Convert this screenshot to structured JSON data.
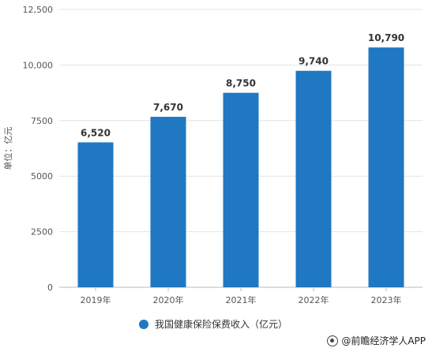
{
  "chart_data": {
    "type": "bar",
    "categories": [
      "2019年",
      "2020年",
      "2021年",
      "2022年",
      "2023年"
    ],
    "series": [
      {
        "name": "我国健康保险保费收入（亿元）",
        "values": [
          6520,
          7670,
          8750,
          9740,
          10790
        ]
      }
    ],
    "data_labels": [
      "6,520",
      "7,670",
      "8,750",
      "9,740",
      "10,790"
    ],
    "ylabel": "单位：亿元",
    "ylim": [
      0,
      12500
    ],
    "yticks": [
      0,
      2500,
      5000,
      7500,
      10000,
      12500
    ],
    "ytick_labels": [
      "0",
      "2500",
      "5000",
      "7500",
      "10,000",
      "12,500"
    ],
    "grid": true,
    "legend_position": "bottom",
    "bar_color": "#1f78c1"
  },
  "credit": "@前瞻经济学人APP"
}
